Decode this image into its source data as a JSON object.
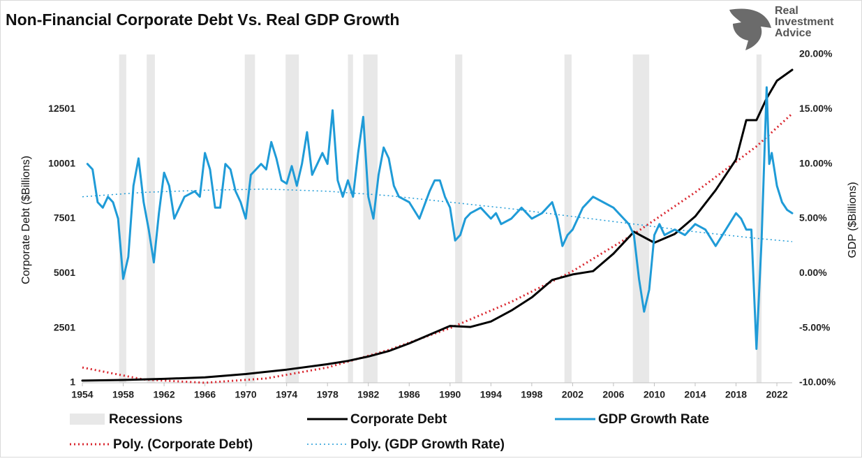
{
  "chart_data": {
    "type": "line",
    "title": "Non-Financial Corporate Debt Vs. Real GDP Growth",
    "logo": [
      "Real",
      "Investment",
      "Advice"
    ],
    "y_label": "Corporate Debt ($Billions)",
    "y2_label": "GDP ($Billions)",
    "xlim": [
      1954,
      2023.5
    ],
    "xticks": [
      1954,
      1958,
      1962,
      1966,
      1970,
      1974,
      1978,
      1982,
      1986,
      1990,
      1994,
      1998,
      2002,
      2006,
      2010,
      2014,
      2018,
      2022
    ],
    "ylim": [
      1,
      15001
    ],
    "yticks": [
      1,
      2501,
      5001,
      7501,
      10001,
      12501
    ],
    "y2lim": [
      -10,
      20
    ],
    "y2ticks": [
      {
        "value": -10,
        "label": "-10.00%"
      },
      {
        "value": -5,
        "label": "-5.00%"
      },
      {
        "value": 0,
        "label": "0.00%"
      },
      {
        "value": 5,
        "label": "5.00%"
      },
      {
        "value": 10,
        "label": "10.00%"
      },
      {
        "value": 15,
        "label": "15.00%"
      },
      {
        "value": 20,
        "label": "20.00%"
      }
    ],
    "grid": false,
    "recessions": {
      "name": "Recessions",
      "color": "#e8e8e8",
      "ranges": [
        [
          1957.6,
          1958.3
        ],
        [
          1960.3,
          1961.1
        ],
        [
          1969.9,
          1970.9
        ],
        [
          1973.9,
          1975.2
        ],
        [
          1980.0,
          1980.5
        ],
        [
          1981.5,
          1982.9
        ],
        [
          1990.5,
          1991.2
        ],
        [
          2001.2,
          2001.9
        ],
        [
          2007.9,
          2009.5
        ],
        [
          2020.0,
          2020.5
        ]
      ]
    },
    "series": [
      {
        "name": "Corporate Debt",
        "color": "#000000",
        "style": "solid",
        "width": 3,
        "axis": "y",
        "x": [
          1954,
          1958,
          1962,
          1966,
          1970,
          1974,
          1978,
          1980,
          1982,
          1984,
          1986,
          1988,
          1990,
          1992,
          1994,
          1996,
          1998,
          2000,
          2002,
          2004,
          2006,
          2008,
          2010,
          2012,
          2014,
          2016,
          2018,
          2019,
          2020,
          2021,
          2022,
          2023.5
        ],
        "values": [
          100,
          130,
          180,
          250,
          400,
          600,
          850,
          1000,
          1200,
          1450,
          1800,
          2200,
          2600,
          2550,
          2800,
          3300,
          3900,
          4700,
          4950,
          5100,
          5900,
          6900,
          6400,
          6800,
          7600,
          8800,
          10200,
          12000,
          12000,
          13000,
          13800,
          14300
        ]
      },
      {
        "name": "GDP Growth Rate",
        "color": "#1f9bd7",
        "style": "solid",
        "width": 3,
        "axis": "y2",
        "x": [
          1954.5,
          1955,
          1955.5,
          1956,
          1956.5,
          1957,
          1957.5,
          1958,
          1958.5,
          1959,
          1959.5,
          1960,
          1960.5,
          1961,
          1961.5,
          1962,
          1962.5,
          1963,
          1964,
          1965,
          1965.5,
          1966,
          1966.5,
          1967,
          1967.5,
          1968,
          1968.5,
          1969,
          1969.5,
          1970,
          1970.5,
          1971,
          1971.5,
          1972,
          1972.5,
          1973,
          1973.5,
          1974,
          1974.5,
          1975,
          1975.5,
          1976,
          1976.5,
          1977,
          1977.5,
          1978,
          1978.5,
          1979,
          1979.5,
          1980,
          1980.5,
          1981,
          1981.5,
          1982,
          1982.5,
          1983,
          1983.5,
          1984,
          1984.5,
          1985,
          1986,
          1987,
          1988,
          1988.5,
          1989,
          1989.5,
          1990,
          1990.5,
          1991,
          1991.5,
          1992,
          1993,
          1994,
          1994.5,
          1995,
          1996,
          1997,
          1998,
          1999,
          2000,
          2000.5,
          2001,
          2001.5,
          2002,
          2003,
          2004,
          2005,
          2006,
          2007,
          2007.5,
          2008,
          2008.5,
          2009,
          2009.5,
          2010,
          2010.5,
          2011,
          2012,
          2013,
          2014,
          2015,
          2016,
          2017,
          2018,
          2018.5,
          2019,
          2019.5,
          2020,
          2020.5,
          2021,
          2021.25,
          2021.5,
          2022,
          2022.5,
          2023,
          2023.5
        ],
        "values": [
          10,
          9.5,
          6.5,
          6,
          7,
          6.5,
          5,
          -0.5,
          1.5,
          8,
          10.5,
          6.5,
          4,
          1,
          5.5,
          9.2,
          8,
          5,
          7,
          7.5,
          7,
          11,
          9.5,
          6,
          6,
          10,
          9.5,
          7.5,
          6.5,
          5,
          9,
          9.5,
          10,
          9.5,
          12,
          10.5,
          8.5,
          8.2,
          9.8,
          8,
          10,
          12.9,
          9,
          10,
          11,
          10,
          14.9,
          8.5,
          7,
          8.5,
          7,
          11,
          14.3,
          7,
          5,
          9,
          11.5,
          10.5,
          8,
          7,
          6.5,
          5,
          7.5,
          8.5,
          8.5,
          7,
          6,
          3,
          3.5,
          5,
          5.5,
          6,
          5,
          5.5,
          4.5,
          5,
          6,
          5,
          5.5,
          6.5,
          5,
          2.5,
          3.5,
          4,
          6,
          7,
          6.5,
          6,
          5,
          4.5,
          3.5,
          -0.5,
          -3.5,
          -1.5,
          3.5,
          4.5,
          3.5,
          4,
          3.5,
          4.5,
          4,
          2.5,
          4,
          5.5,
          5,
          4,
          4,
          -6.9,
          3,
          17,
          10,
          11,
          8,
          6.5,
          5.8,
          5.5
        ]
      },
      {
        "name": "Poly. (Corporate Debt)",
        "color": "#d9262e",
        "style": "dotted",
        "width": 3,
        "axis": "y",
        "x": [
          1954,
          1960,
          1966,
          1972,
          1978,
          1984,
          1990,
          1996,
          2002,
          2008,
          2014,
          2020,
          2023.5
        ],
        "values": [
          700,
          150,
          0,
          200,
          700,
          1500,
          2500,
          3700,
          5100,
          6800,
          8700,
          10800,
          12300
        ]
      },
      {
        "name": "Poly. (GDP Growth Rate)",
        "color": "#1f9bd7",
        "style": "dotted",
        "width": 1.5,
        "axis": "y2",
        "x": [
          1954,
          1960,
          1966,
          1972,
          1978,
          1984,
          1990,
          1996,
          2002,
          2008,
          2014,
          2020,
          2023.5
        ],
        "values": [
          7,
          7.4,
          7.6,
          7.7,
          7.5,
          7.1,
          6.5,
          5.9,
          5.2,
          4.5,
          3.8,
          3.2,
          2.9
        ]
      }
    ]
  }
}
